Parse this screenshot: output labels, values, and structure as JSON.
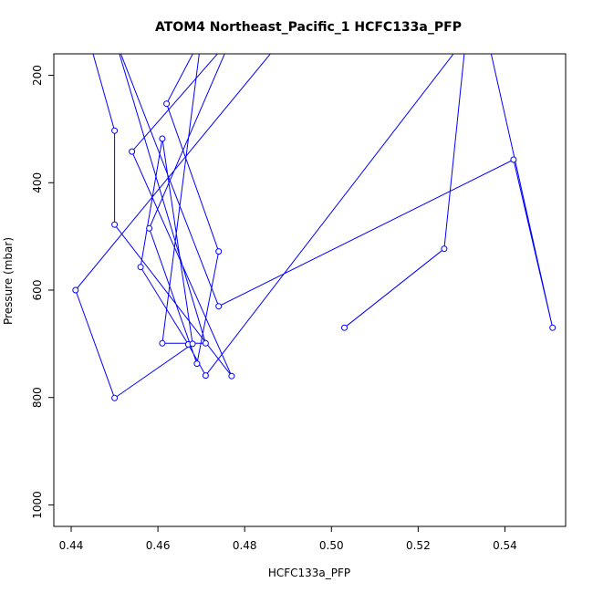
{
  "chart_data": {
    "type": "line",
    "title": "ATOM4 Northeast_Pacific_1 HCFC133a_PFP",
    "xlabel": "HCFC133a_PFP",
    "ylabel": "Pressure (mbar)",
    "xlim": [
      0.436,
      0.554
    ],
    "ylim": [
      1040,
      160
    ],
    "y_reversed": true,
    "x_ticks": [
      0.44,
      0.46,
      0.48,
      0.5,
      0.52,
      0.54
    ],
    "x_tick_labels": [
      "0.44",
      "0.46",
      "0.48",
      "0.50",
      "0.52",
      "0.54"
    ],
    "y_ticks": [
      200,
      400,
      600,
      800,
      1000
    ],
    "y_tick_labels": [
      "200",
      "400",
      "600",
      "800",
      "1000"
    ],
    "grid": false,
    "legend": "none",
    "series_color": "#0000ff",
    "point_style": "open-circle",
    "x": [
      0.503,
      0.526,
      0.531,
      0.471,
      0.467,
      0.456,
      0.461,
      0.468,
      0.45,
      0.441,
      0.489,
      0.444,
      0.45,
      0.45,
      0.477,
      0.454,
      0.477,
      0.458,
      0.469,
      0.474,
      0.462,
      0.47,
      0.461,
      0.471,
      0.45,
      0.474,
      0.542,
      0.551,
      0.536
    ],
    "y": [
      670,
      523,
      130,
      759,
      701,
      557,
      318,
      700,
      801,
      600,
      130,
      130,
      303,
      478,
      760,
      342,
      130,
      485,
      737,
      528,
      253,
      130,
      699,
      699,
      130,
      630,
      357,
      670,
      130
    ]
  }
}
